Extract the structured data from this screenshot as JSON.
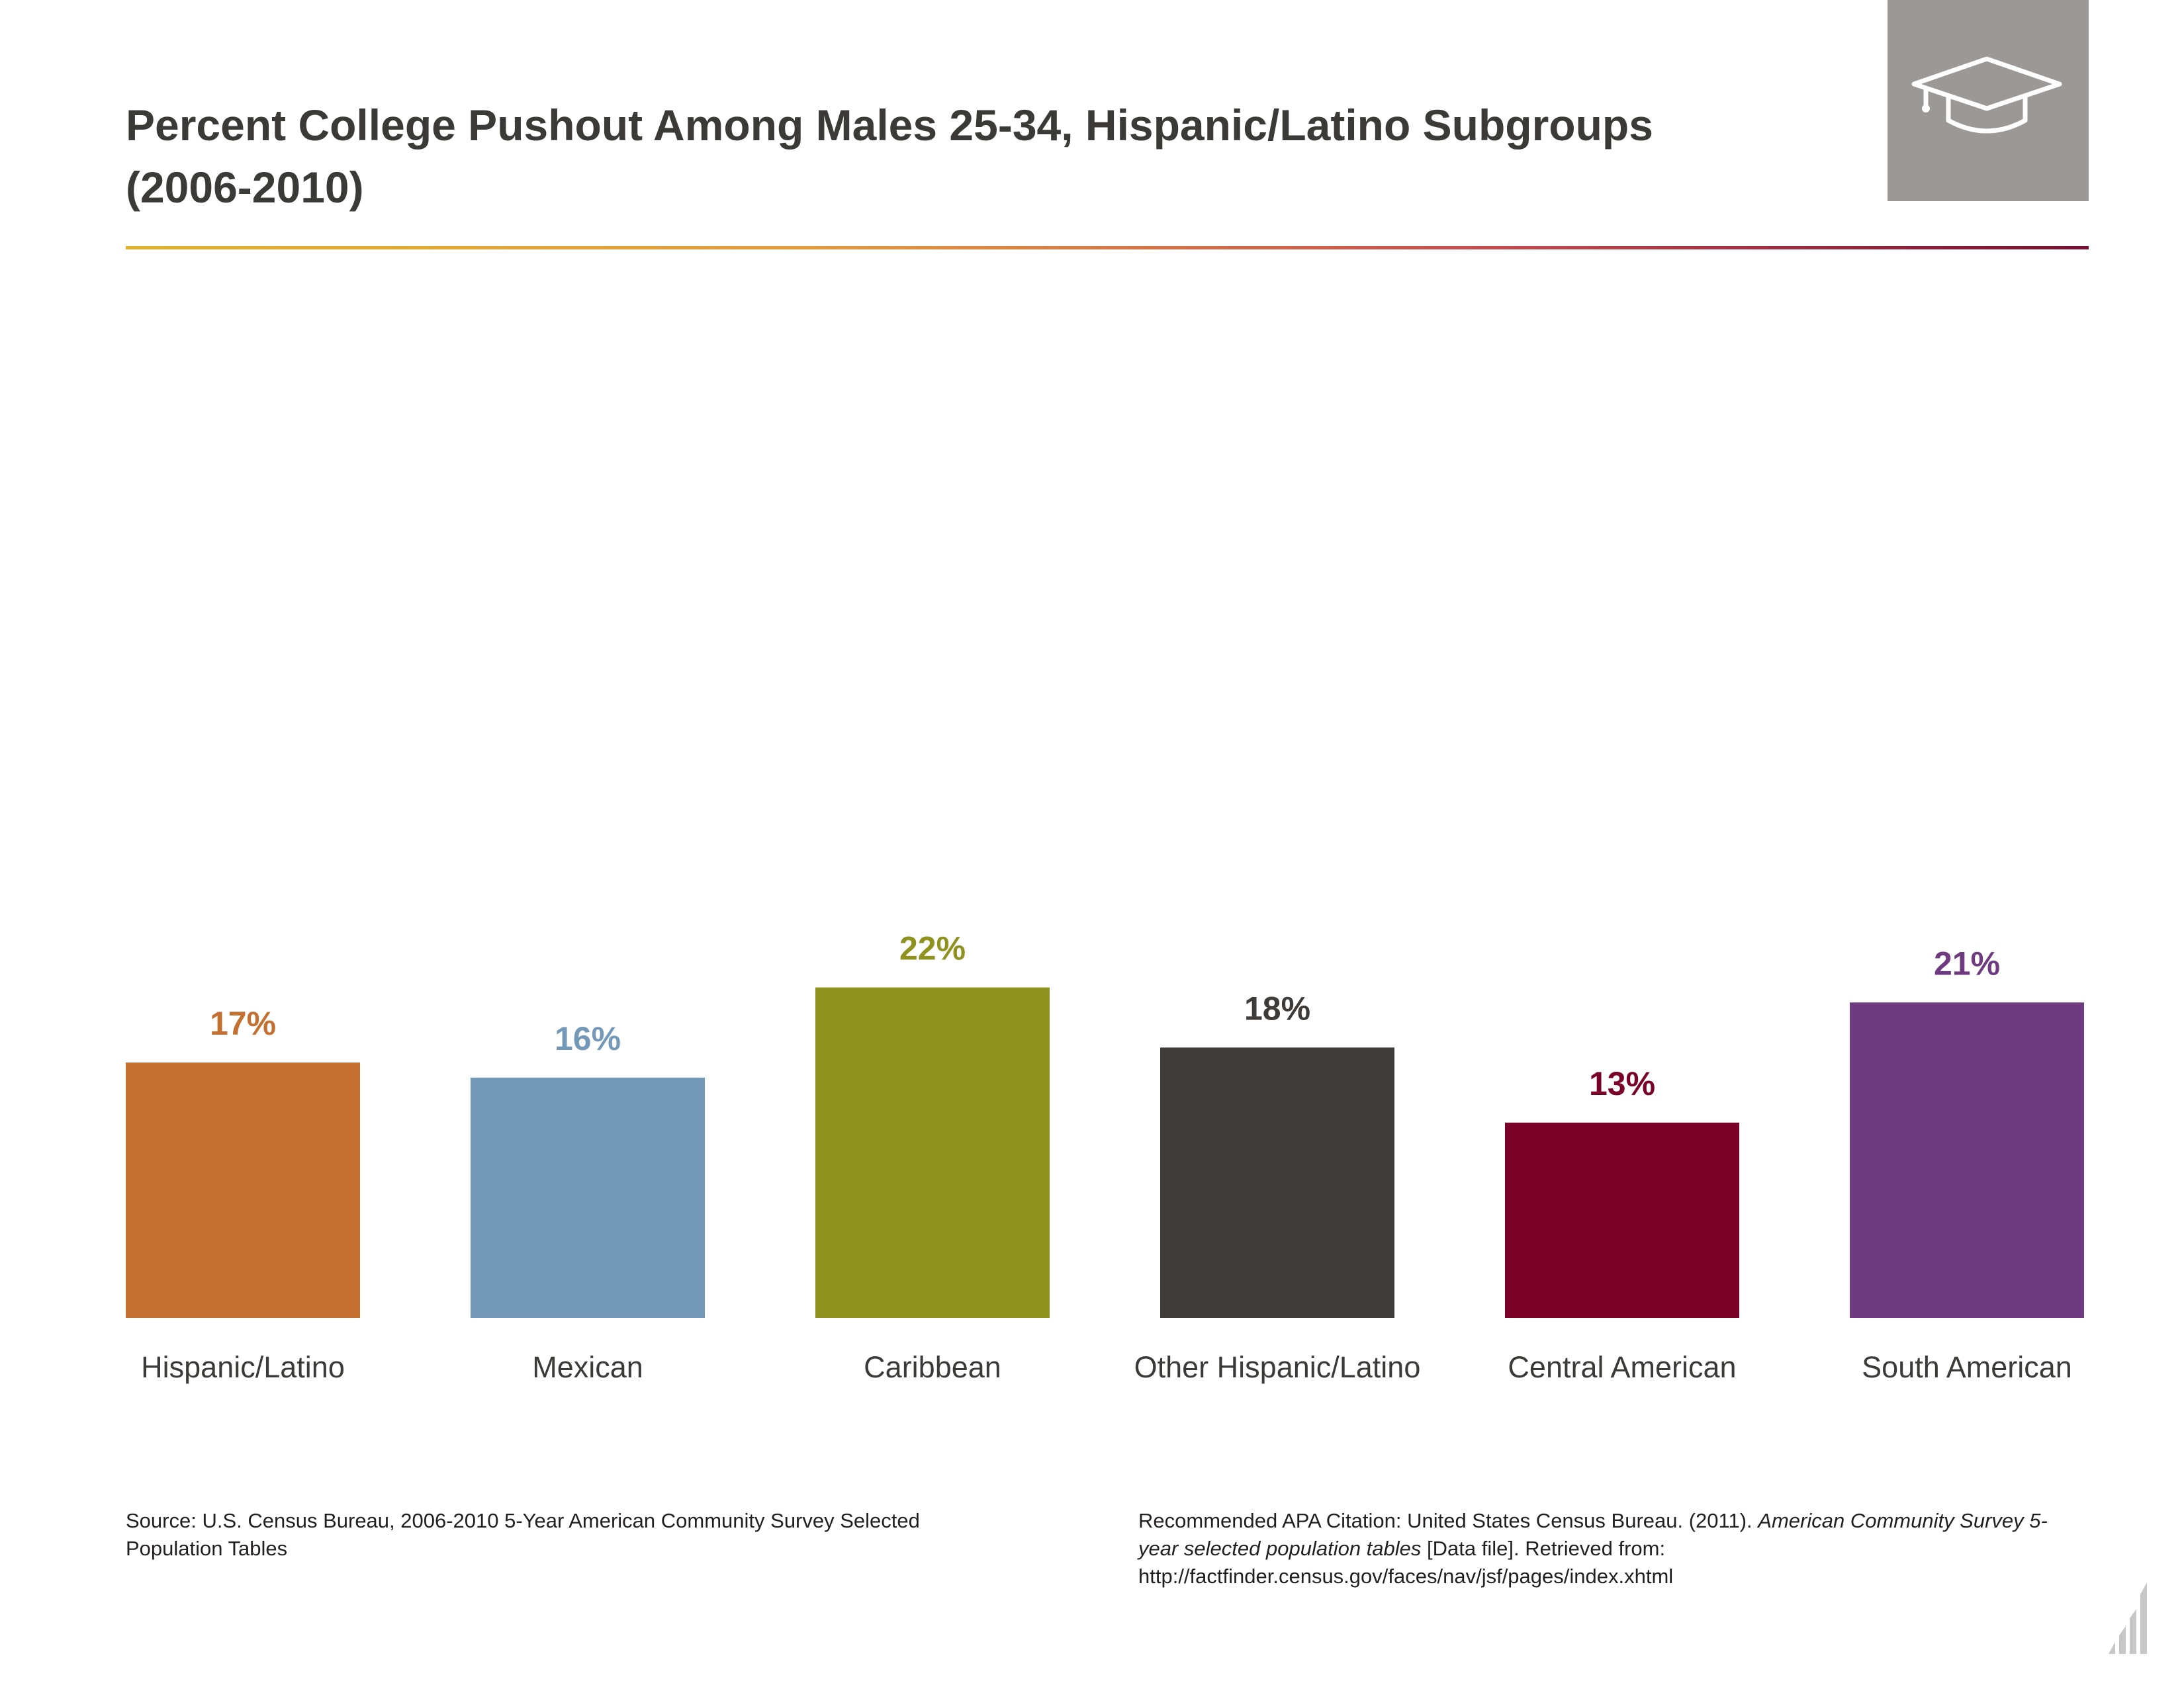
{
  "header": {
    "title_line1": "Percent College Pushout Among Males 25-34, Hispanic/Latino Subgroups",
    "title_line2": "(2006-2010)",
    "icon": "graduation-cap-icon",
    "icon_box_color": "#9c9896"
  },
  "chart_data": {
    "type": "bar",
    "title": "Percent College Pushout Among Males 25-34, Hispanic/Latino Subgroups (2006-2010)",
    "categories": [
      "Hispanic/Latino",
      "Mexican",
      "Caribbean",
      "Other Hispanic/Latino",
      "Central American",
      "South American"
    ],
    "values": [
      17,
      16,
      22,
      18,
      13,
      21
    ],
    "value_labels": [
      "17%",
      "16%",
      "22%",
      "18%",
      "13%",
      "21%"
    ],
    "colors": [
      "#c37030",
      "#7398b8",
      "#8f921f",
      "#3e3b38",
      "#7a0027",
      "#6f3b80"
    ],
    "xlabel": "",
    "ylabel": "",
    "ylim": [
      0,
      22
    ],
    "grid": false,
    "legend": "none"
  },
  "footer": {
    "source": "Source: U.S. Census Bureau, 2006-2010 5-Year American Community Survey Selected Population Tables",
    "citation_prefix": "Recommended APA Citation: United States Census Bureau. (2011). ",
    "citation_italic": "American Community Survey 5-year selected population tables",
    "citation_suffix": " [Data file]. Retrieved from: http://factfinder.census.gov/faces/nav/jsf/pages/index.xhtml",
    "logo": "bar-chart-logo-icon"
  }
}
